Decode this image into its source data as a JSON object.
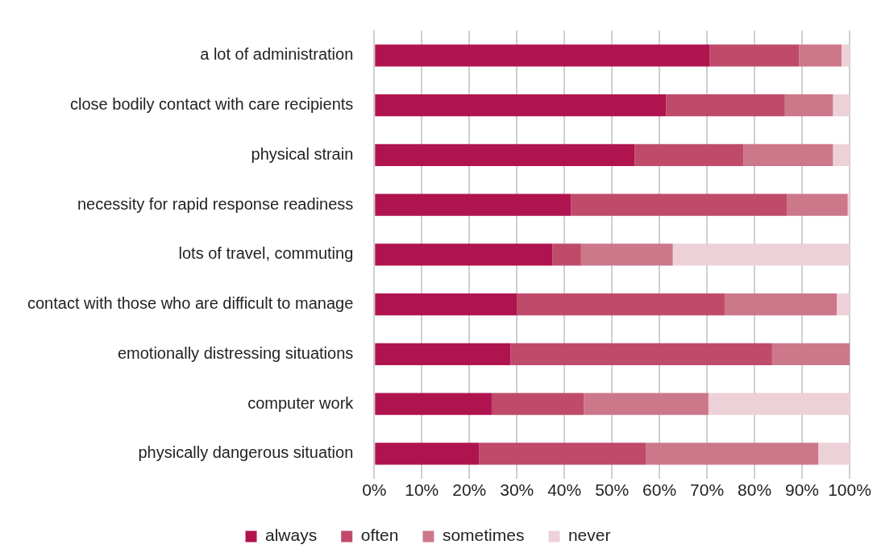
{
  "chart_data": {
    "type": "bar",
    "orientation": "horizontal",
    "stacked": true,
    "categories": [
      "a lot of administration",
      "close bodily contact with care recipients",
      "physical strain",
      "necessity for rapid response readiness",
      "lots of travel, commuting",
      "contact with those who are difficult to manage",
      "emotionally distressing situations",
      "computer work",
      "physically dangerous situation"
    ],
    "series": [
      {
        "name": "always",
        "color": "#b0144f",
        "values": [
          70.6,
          61.4,
          54.8,
          41.4,
          37.5,
          30.0,
          28.7,
          24.7,
          22.1
        ]
      },
      {
        "name": "often",
        "color": "#c04a6a",
        "values": [
          18.8,
          25.0,
          22.9,
          45.4,
          6.0,
          43.7,
          55.0,
          19.4,
          35.1
        ]
      },
      {
        "name": "sometimes",
        "color": "#cd778b",
        "values": [
          8.9,
          10.1,
          18.8,
          12.8,
          19.3,
          23.6,
          16.3,
          26.2,
          36.2
        ]
      },
      {
        "name": "never",
        "color": "#eed1d8",
        "values": [
          1.7,
          3.5,
          3.5,
          0.4,
          37.2,
          2.7,
          0,
          29.7,
          6.6
        ]
      }
    ],
    "xlim": [
      0,
      100
    ],
    "xticks": [
      {
        "value": 0,
        "label": "0%"
      },
      {
        "value": 10,
        "label": "10%"
      },
      {
        "value": 20,
        "label": "20%"
      },
      {
        "value": 30,
        "label": "30%"
      },
      {
        "value": 40,
        "label": "40%"
      },
      {
        "value": 50,
        "label": "50%"
      },
      {
        "value": 60,
        "label": "60%"
      },
      {
        "value": 70,
        "label": "70%"
      },
      {
        "value": 80,
        "label": "80%"
      },
      {
        "value": 90,
        "label": "90%"
      },
      {
        "value": 100,
        "label": "100%"
      }
    ],
    "grid": "x",
    "legend": "bottom"
  }
}
